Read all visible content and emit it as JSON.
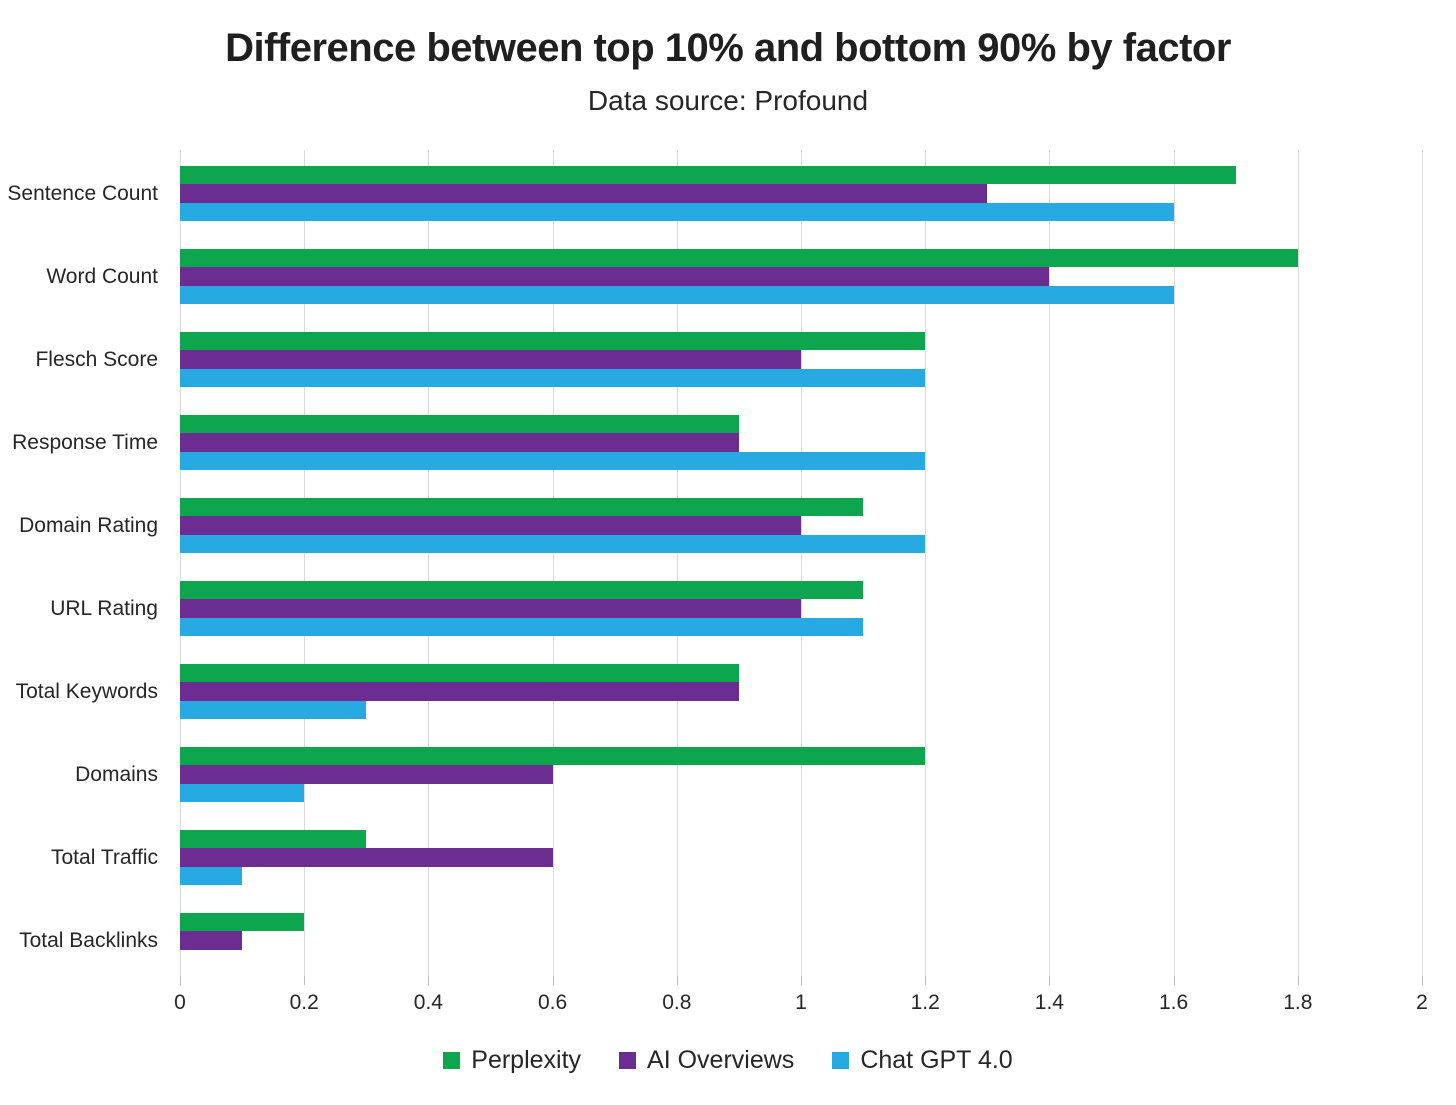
{
  "title": "Difference between top 10% and bottom 90% by factor",
  "subtitle": "Data source: Profound",
  "chart_data": {
    "type": "bar",
    "orientation": "horizontal",
    "title": "Difference between top 10% and bottom 90% by factor",
    "subtitle": "Data source: Profound",
    "categories": [
      "Sentence Count",
      "Word Count",
      "Flesch Score",
      "Response Time",
      "Domain Rating",
      "URL Rating",
      "Total Keywords",
      "Domains",
      "Total Traffic",
      "Total Backlinks"
    ],
    "series": [
      {
        "name": "Perplexity",
        "color": "#0da64f",
        "values": [
          1.7,
          1.8,
          1.2,
          0.9,
          1.1,
          1.1,
          0.9,
          1.2,
          0.3,
          0.2
        ]
      },
      {
        "name": "AI Overviews",
        "color": "#6b2d91",
        "values": [
          1.3,
          1.4,
          1.0,
          0.9,
          1.0,
          1.0,
          0.9,
          0.6,
          0.6,
          0.1
        ]
      },
      {
        "name": "Chat GPT 4.0",
        "color": "#27aae1",
        "values": [
          1.6,
          1.6,
          1.2,
          1.2,
          1.2,
          1.1,
          0.3,
          0.2,
          0.1,
          0
        ]
      }
    ],
    "xlim": [
      0,
      2
    ],
    "x_ticks": [
      0,
      0.2,
      0.4,
      0.6,
      0.8,
      1,
      1.2,
      1.4,
      1.6,
      1.8,
      2
    ],
    "x_tick_labels": [
      "0",
      "0.2",
      "0.4",
      "0.6",
      "0.8",
      "1",
      "1.2",
      "1.4",
      "1.6",
      "1.8",
      "2"
    ],
    "grid": true,
    "legend_position": "bottom",
    "colors": {
      "gridline": "#d9d9d9",
      "tick": "#bfbfbf",
      "text": "#262626",
      "background": "#ffffff"
    }
  }
}
